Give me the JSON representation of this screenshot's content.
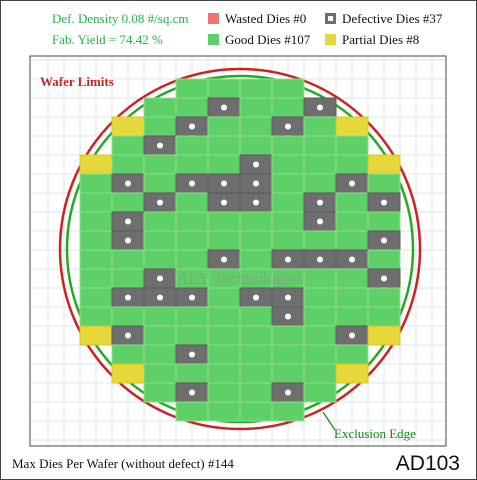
{
  "header": {
    "density": "Def. Density 0.08 #/sq.cm",
    "yield": "Fab. Yield = 74.42 %"
  },
  "legend": [
    {
      "label": "Wasted Dies  #0",
      "color": "#f07272"
    },
    {
      "label": "Defective Dies  #37",
      "color": "#6e6e6e"
    },
    {
      "label": "Good Dies #107",
      "color": "#5fd068"
    },
    {
      "label": "Partial Dies #8",
      "color": "#e6d83a"
    }
  ],
  "wafer": {
    "limit_label": "Wafer Limits",
    "edge_label": "Exclusion Edge",
    "watermark": "ALY Technologies"
  },
  "footer": {
    "max_dies": "Max Dies Per Wafer (without defect) #144",
    "product": "AD103"
  }
}
